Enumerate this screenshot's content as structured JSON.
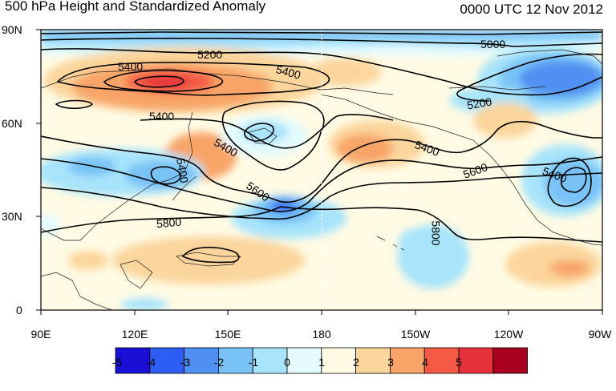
{
  "header": {
    "title": "500 hPa Height and Standardized Anomaly",
    "timestamp": "0000 UTC 12 Nov 2012"
  },
  "map": {
    "lat_ticks": [
      "90N",
      "60N",
      "30N",
      "0"
    ],
    "lon_ticks": [
      "90E",
      "120E",
      "150E",
      "180",
      "150W",
      "120W",
      "90W"
    ],
    "lon_range": [
      "90E",
      "90W"
    ],
    "lat_range": [
      "0",
      "90N"
    ],
    "contour_labels": {
      "c5000": "5000",
      "c5200a": "5200",
      "c5200b": "5200",
      "c5400a": "5400",
      "c5400b": "5400",
      "c5400c": "5400",
      "c5400d": "5400",
      "c5400e": "5400",
      "c5400f": "5400",
      "c5400g": "5400",
      "c5600a": "5600",
      "c5600b": "5600",
      "c5800a": "5800",
      "c5800b": "5800"
    }
  },
  "colorbar": {
    "labels": [
      "-5",
      "-4",
      "-3",
      "-2",
      "-1",
      "0",
      "1",
      "2",
      "3",
      "4",
      "5"
    ],
    "colors": [
      "#1a0fd6",
      "#2e5ef6",
      "#4f90f2",
      "#78c2f6",
      "#a8e4fb",
      "#e5fbfe",
      "#fffbe4",
      "#fbd59c",
      "#f8a468",
      "#f45a45",
      "#e6303a",
      "#a8001e"
    ]
  }
}
